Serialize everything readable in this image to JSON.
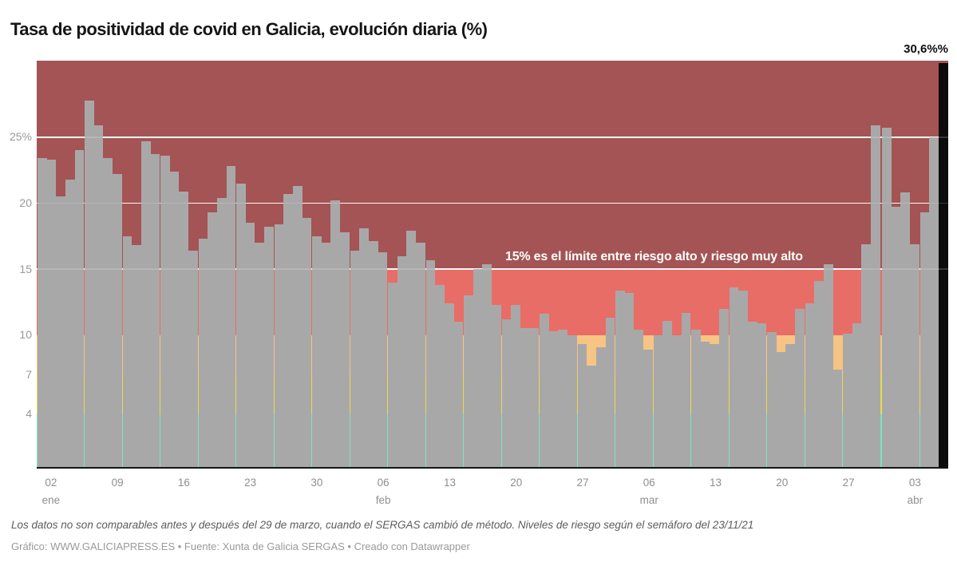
{
  "chart_data": {
    "type": "bar",
    "title": "Tasa de positividad de covid en Galicia, evolución diaria (%)",
    "unit": "%",
    "ymax": 30.8,
    "bar_color": "#a9a8a8",
    "highlight": {
      "index": 95,
      "color": "#0c0c0c",
      "label": "30,6%%"
    },
    "separator_before_index": 89,
    "annotation": "15% es el límite entre riesgo alto y riesgo muy alto",
    "values": [
      23.4,
      23.3,
      20.5,
      21.8,
      24.0,
      27.8,
      25.9,
      23.4,
      22.2,
      17.5,
      16.8,
      24.7,
      23.7,
      23.6,
      22.4,
      20.9,
      16.4,
      17.3,
      19.3,
      20.4,
      22.8,
      21.5,
      18.5,
      17.0,
      18.2,
      18.4,
      20.7,
      21.3,
      18.9,
      17.5,
      17.0,
      20.2,
      17.8,
      16.4,
      18.1,
      17.1,
      16.3,
      14.0,
      16.0,
      17.9,
      17.0,
      15.7,
      13.8,
      12.4,
      11.0,
      13.0,
      15.0,
      15.4,
      12.3,
      11.2,
      12.3,
      10.5,
      10.5,
      11.6,
      10.3,
      10.4,
      10.0,
      9.3,
      7.7,
      9.1,
      11.3,
      13.4,
      13.2,
      10.4,
      8.9,
      10.0,
      11.1,
      10.0,
      11.7,
      10.4,
      9.5,
      9.3,
      12.0,
      13.6,
      13.4,
      11.0,
      10.9,
      10.2,
      8.7,
      9.3,
      12.0,
      12.4,
      14.1,
      15.4,
      7.4,
      10.1,
      10.9,
      16.9,
      25.9,
      25.7,
      19.7,
      20.8,
      16.9,
      19.3,
      25.0,
      30.6
    ],
    "x_ticks": [
      {
        "index": 1,
        "day": "02",
        "month": "ene"
      },
      {
        "index": 8,
        "day": "09"
      },
      {
        "index": 15,
        "day": "16"
      },
      {
        "index": 22,
        "day": "23"
      },
      {
        "index": 29,
        "day": "30"
      },
      {
        "index": 36,
        "day": "06",
        "month": "feb"
      },
      {
        "index": 43,
        "day": "13"
      },
      {
        "index": 50,
        "day": "20"
      },
      {
        "index": 57,
        "day": "27"
      },
      {
        "index": 64,
        "day": "06",
        "month": "mar"
      },
      {
        "index": 71,
        "day": "13"
      },
      {
        "index": 78,
        "day": "20"
      },
      {
        "index": 85,
        "day": "27"
      },
      {
        "index": 92,
        "day": "03",
        "month": "abr"
      }
    ],
    "y_ticks": [
      {
        "value": 25,
        "label": "25%"
      },
      {
        "value": 20,
        "label": "20"
      },
      {
        "value": 15,
        "label": "15"
      },
      {
        "value": 10,
        "label": "10"
      },
      {
        "value": 7,
        "label": "7"
      },
      {
        "value": 4,
        "label": "4"
      }
    ],
    "gridline_values": [
      25,
      20,
      15
    ],
    "risk_zones": [
      {
        "from": 15,
        "to": 30.8,
        "color": "#a45454",
        "label": "riesgo muy alto"
      },
      {
        "from": 10,
        "to": 15,
        "color": "#e86d67",
        "label": "riesgo alto"
      },
      {
        "from": 7,
        "to": 10,
        "color": "#f6c483"
      },
      {
        "from": 4,
        "to": 7,
        "color": "#e6dc4e"
      },
      {
        "from": 0,
        "to": 4,
        "color": "#7de3c5"
      }
    ],
    "layout": {
      "grid": "horizontal-white",
      "legend": "none",
      "hairline_gap_every": 4
    }
  },
  "footer": {
    "note": "Los datos no son comparables antes y después del 29 de marzo, cuando el SERGAS cambió de método. Niveles de riesgo según el semáforo del 23/11/21",
    "credits": "Gráfico: WWW.GALICIAPRESS.ES • Fuente: Xunta de Galicia SERGAS • Creado con Datawrapper"
  }
}
